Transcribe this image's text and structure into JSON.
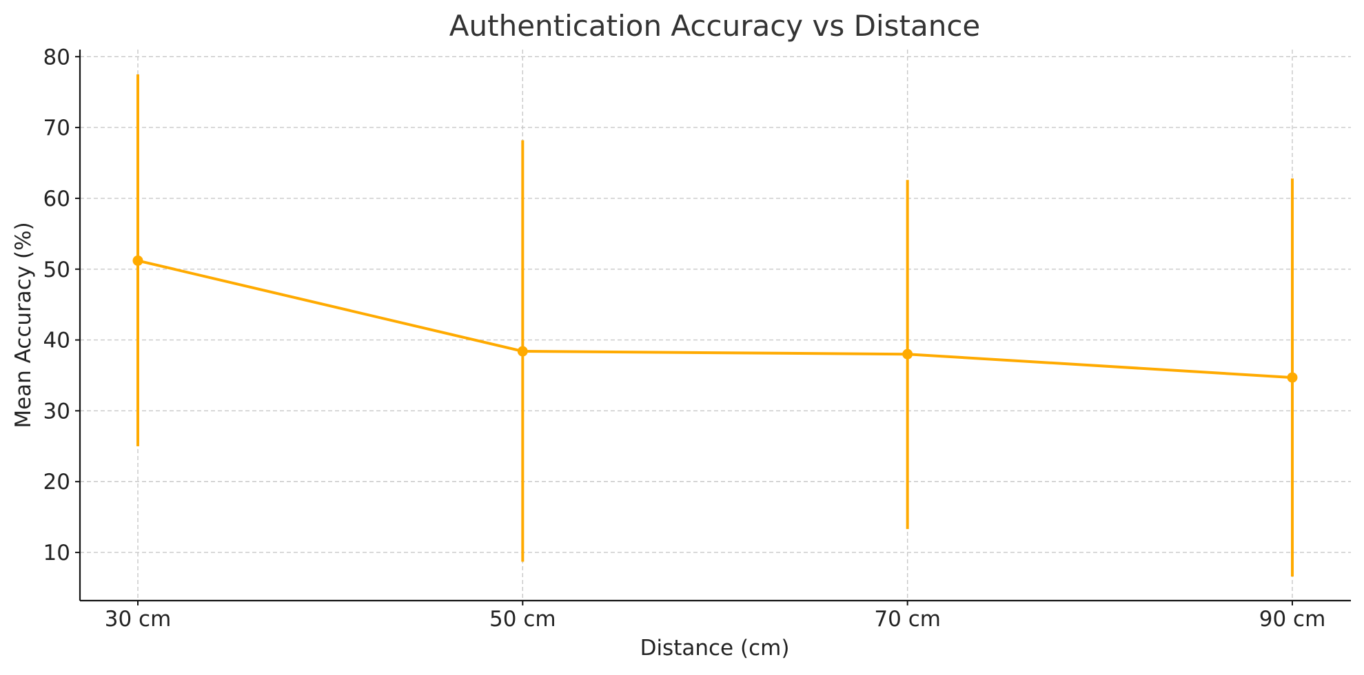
{
  "chart_data": {
    "type": "line",
    "title": "Authentication Accuracy vs Distance",
    "xlabel": "Distance (cm)",
    "ylabel": "Mean Accuracy (%)",
    "categories": [
      "30 cm",
      "50 cm",
      "70 cm",
      "90 cm"
    ],
    "ylim": [
      3.2,
      81
    ],
    "yticks": [
      10,
      20,
      30,
      40,
      50,
      60,
      70,
      80
    ],
    "grid": true,
    "series": [
      {
        "values": [
          51.2,
          38.4,
          38.0,
          34.7
        ],
        "error_low": [
          25.0,
          8.7,
          13.3,
          6.6
        ],
        "error_high": [
          77.5,
          68.2,
          62.6,
          62.8
        ],
        "color": "#FFAA00"
      }
    ]
  }
}
